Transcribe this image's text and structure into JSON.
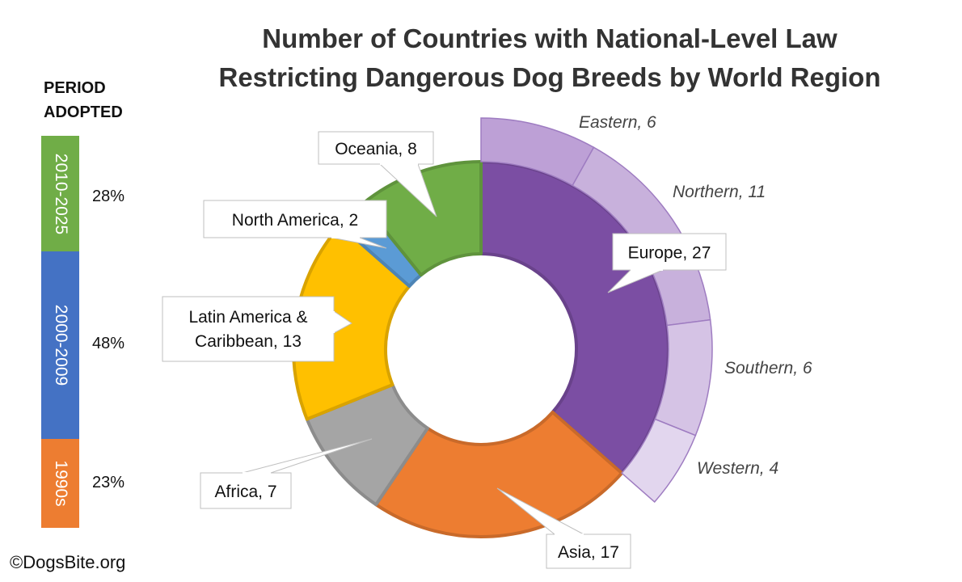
{
  "title_lines": [
    "Number of Countries with National-Level Law",
    "Restricting Dangerous Dog Breeds by World Region"
  ],
  "period": {
    "label_lines": [
      "PERIOD",
      "ADOPTED"
    ],
    "items": [
      {
        "label": "2010-2025",
        "percent": "28%",
        "color": "#70AD47"
      },
      {
        "label": "2000-2009",
        "percent": "48%",
        "color": "#4472C4"
      },
      {
        "label": "1990s",
        "percent": "23%",
        "color": "#ED7D31"
      }
    ]
  },
  "copyright": "©DogsBite.org",
  "chart_data": {
    "type": "pie",
    "subtype": "sunburst-donut",
    "title": "Number of Countries with National-Level Law Restricting Dangerous Dog Breeds by World Region",
    "regions": [
      {
        "name": "Europe",
        "value": 27,
        "color": "#7B4EA3",
        "label": "Europe, 27"
      },
      {
        "name": "Asia",
        "value": 17,
        "color": "#ED7D31",
        "label": "Asia, 17"
      },
      {
        "name": "Africa",
        "value": 7,
        "color": "#A5A5A5",
        "label": "Africa, 7"
      },
      {
        "name": "Latin America & Caribbean",
        "value": 13,
        "color": "#FFC000",
        "label_lines": [
          "Latin America &",
          "Caribbean, 13"
        ]
      },
      {
        "name": "North America",
        "value": 2,
        "color": "#5B9BD5",
        "label": "North America, 2"
      },
      {
        "name": "Oceania",
        "value": 8,
        "color": "#70AD47",
        "label": "Oceania, 8"
      }
    ],
    "europe_subregions": [
      {
        "name": "Eastern",
        "value": 6,
        "color": "#BDA0D6",
        "label": "Eastern, 6"
      },
      {
        "name": "Northern",
        "value": 11,
        "color": "#C8B1DC",
        "label": "Northern, 11"
      },
      {
        "name": "Southern",
        "value": 6,
        "color": "#D5C3E5",
        "label": "Southern, 6"
      },
      {
        "name": "Western",
        "value": 4,
        "color": "#E2D6EE",
        "label": "Western, 4"
      }
    ]
  }
}
